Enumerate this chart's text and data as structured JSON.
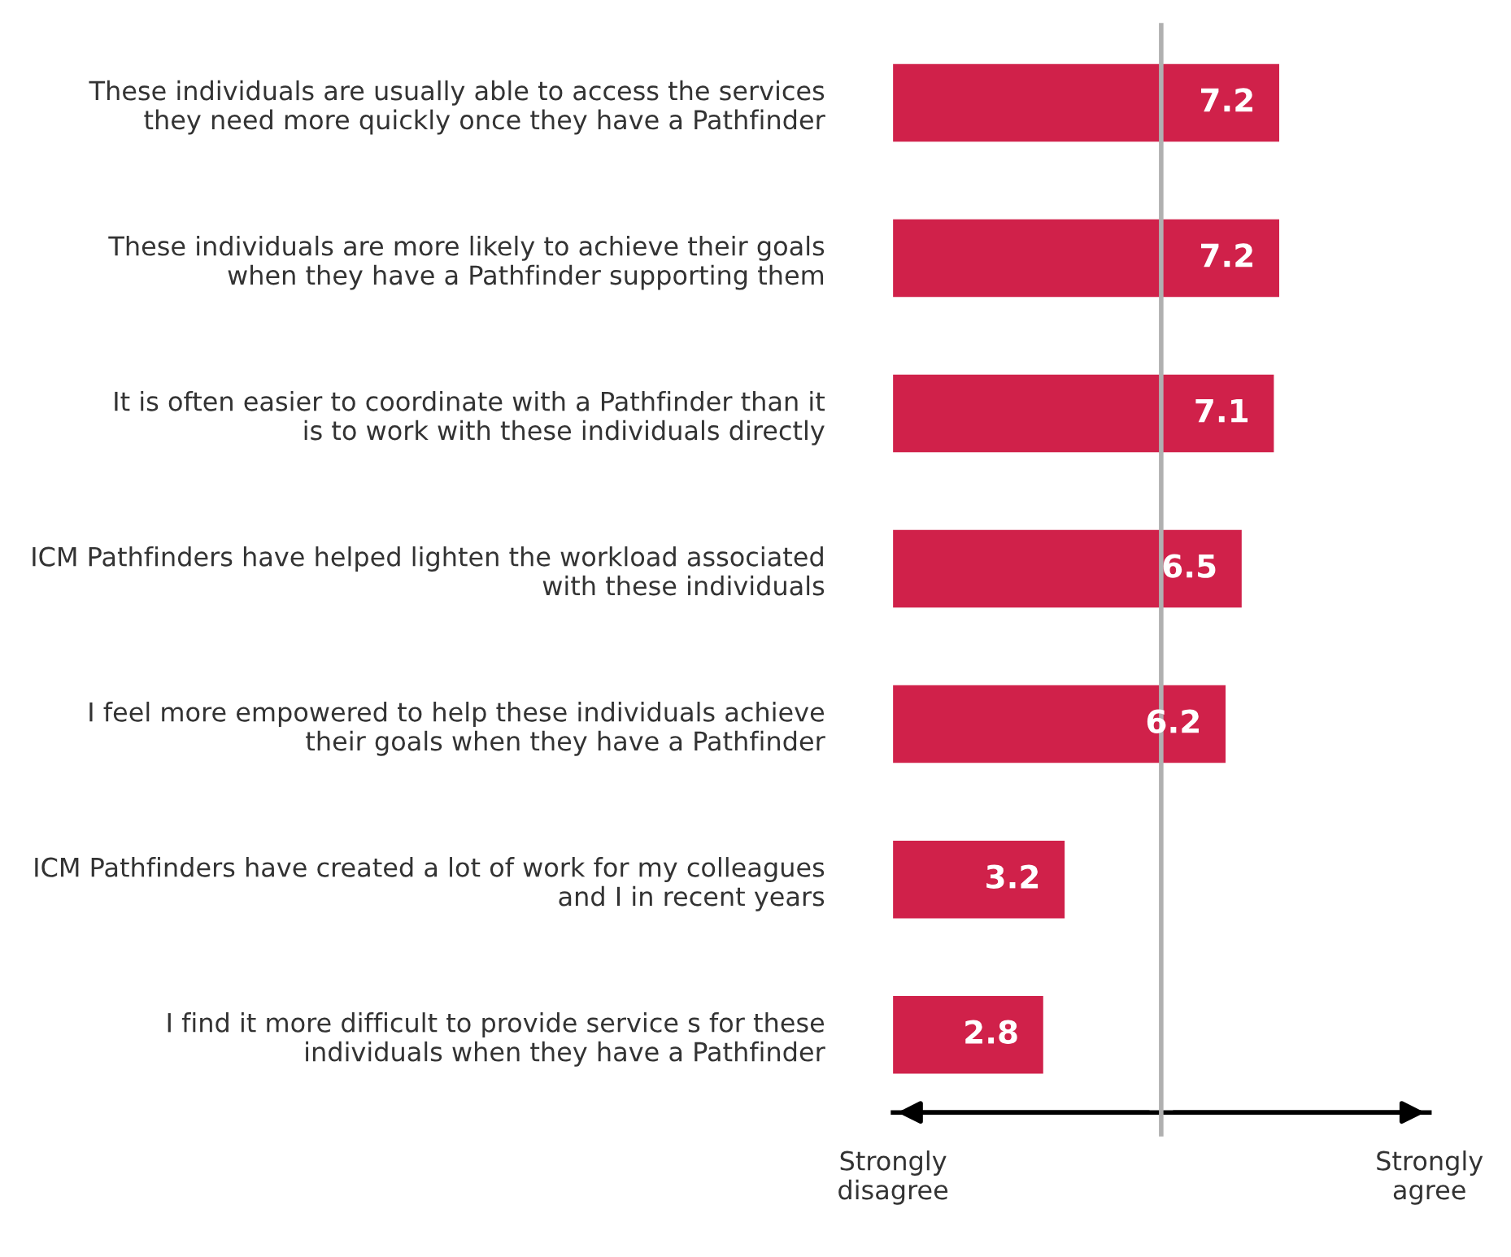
{
  "chart_data": {
    "type": "bar",
    "orientation": "horizontal",
    "categories": [
      "These individuals are usually able to access the services\nthey need more quickly once they have a Pathfinder",
      "These individuals are more likely to achieve their goals\nwhen they have a Pathfinder supporting them",
      "It is often easier to coordinate with a Pathfinder than it\nis to work with these individuals directly",
      "ICM Pathfinders have helped lighten the workload associated\nwith these individuals",
      "I feel more empowered to help these individuals achieve\ntheir goals when they have a Pathfinder",
      "ICM Pathfinders have created a lot of work for my colleagues\nand I in recent years",
      "I find it more difficult to provide service s for these\nindividuals when they have a Pathfinder"
    ],
    "values": [
      7.2,
      7.2,
      7.1,
      6.5,
      6.2,
      3.2,
      2.8
    ],
    "color": "#d0214a",
    "data_labels": true,
    "grid": false,
    "legend": false,
    "xlim": [
      0,
      10
    ],
    "annotations": [
      "Strongly\ndisagree",
      "Strongly\nagree"
    ],
    "ref_lines": [
      {
        "axis": "x",
        "value": 5,
        "color": "#b0b0b0"
      }
    ]
  }
}
